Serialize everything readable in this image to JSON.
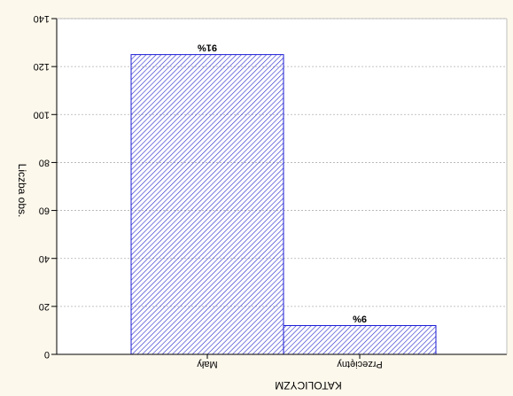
{
  "chart_data": {
    "type": "bar",
    "orientation": "flipped-vertical",
    "categories": [
      "Mały",
      "Przeciętny"
    ],
    "values": [
      125,
      12
    ],
    "data_labels": [
      "91%",
      "9%"
    ],
    "xlabel": "KATOLICYZM",
    "ylabel": "Liczba obs.",
    "ylim": [
      0,
      140
    ],
    "yticks": [
      0,
      20,
      40,
      60,
      80,
      100,
      120,
      140
    ],
    "grid": true,
    "colors": {
      "background": "#fdf8ec",
      "plot_background": "#ffffff",
      "bar_stroke": "#1c1cd6",
      "bar_hatch": "#2626cc",
      "grid": "#b0b0b0",
      "axis": "#000000"
    }
  }
}
